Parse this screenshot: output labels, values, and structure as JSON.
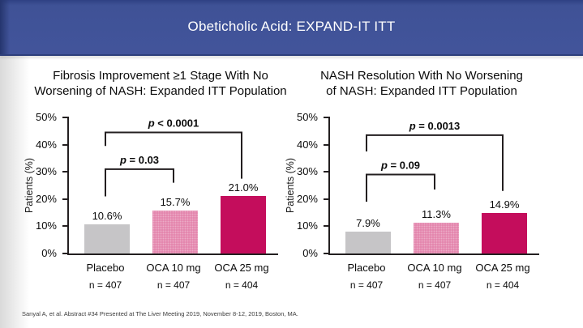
{
  "header": {
    "title": "Obeticholic Acid: EXPAND-IT ITT"
  },
  "footer": {
    "citation": "Sanyal A, et al. Abstract #34 Presented at The Liver Meeting 2019, November 8-12, 2019, Boston, MA."
  },
  "colors": {
    "header_bg": "#42549b",
    "header_edge": "#2e3f7b",
    "axis": "#231f20",
    "bar_placebo": "#c6c5c7",
    "bar_oca10": "#e27fa9",
    "bar_oca25": "#c40d5c"
  },
  "chart_data": [
    {
      "type": "bar",
      "title": "Fibrosis Improvement ≥1 Stage With No Worsening of NASH: Expanded ITT Population",
      "title_lines": [
        "Fibrosis Improvement ≥1 Stage With No",
        "Worsening of NASH: Expanded ITT Population"
      ],
      "ylabel": "Patients (%)",
      "ylim": [
        0,
        50
      ],
      "yticks": [
        "0%",
        "10%",
        "20%",
        "30%",
        "40%",
        "50%"
      ],
      "categories": [
        "Placebo",
        "OCA 10 mg",
        "OCA 25 mg"
      ],
      "group_sizes": [
        "n = 407",
        "n = 407",
        "n = 404"
      ],
      "values": [
        10.6,
        15.7,
        21.0
      ],
      "value_labels": [
        "10.6%",
        "15.7%",
        "21.0%"
      ],
      "bar_colors": [
        "#c6c5c7",
        "#e27fa9",
        "#c40d5c"
      ],
      "bar_patterns": [
        "solid",
        "dots",
        "solid"
      ],
      "grid": false,
      "brackets": [
        {
          "from": 0,
          "to": 1,
          "label": "p = 0.03",
          "y_pct": 31.0,
          "left_end_pct": 21.0,
          "right_end_pct": 26.0
        },
        {
          "from": 0,
          "to": 2,
          "label": "p < 0.0001",
          "y_pct": 44.5,
          "left_end_pct": 39.5,
          "right_end_pct": 27.5
        }
      ]
    },
    {
      "type": "bar",
      "title": "NASH Resolution With No Worsening of NASH: Expanded ITT Population",
      "title_lines": [
        "NASH Resolution With No Worsening",
        "of NASH: Expanded ITT Population"
      ],
      "ylabel": "Patients (%)",
      "ylim": [
        0,
        50
      ],
      "yticks": [
        "0%",
        "10%",
        "20%",
        "30%",
        "40%",
        "50%"
      ],
      "categories": [
        "Placebo",
        "OCA 10 mg",
        "OCA 25 mg"
      ],
      "group_sizes": [
        "n = 407",
        "n = 407",
        "n = 404"
      ],
      "values": [
        7.9,
        11.3,
        14.9
      ],
      "value_labels": [
        "7.9%",
        "11.3%",
        "14.9%"
      ],
      "bar_colors": [
        "#c6c5c7",
        "#e27fa9",
        "#c40d5c"
      ],
      "bar_patterns": [
        "solid",
        "dots",
        "solid"
      ],
      "grid": false,
      "brackets": [
        {
          "from": 0,
          "to": 1,
          "label": "p = 0.09",
          "y_pct": 29.0,
          "left_end_pct": 19.0,
          "right_end_pct": 23.5
        },
        {
          "from": 0,
          "to": 2,
          "label": "p = 0.0013",
          "y_pct": 43.5,
          "left_end_pct": 37.5,
          "right_end_pct": 23.0
        }
      ]
    }
  ]
}
